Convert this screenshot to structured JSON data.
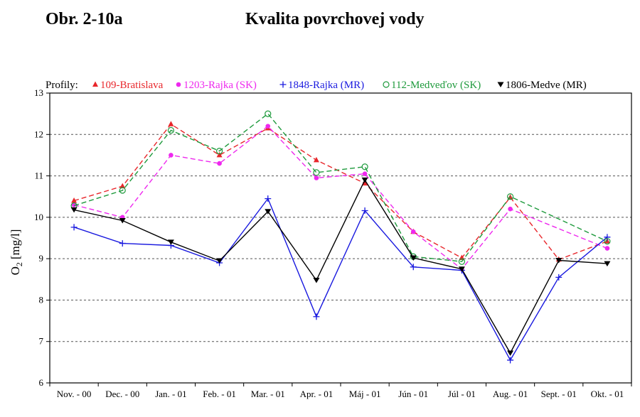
{
  "header": {
    "figure_number": "Obr. 2-10a",
    "figure_title": "Kvalita povrchovej vody"
  },
  "chart_data": {
    "type": "line",
    "legend_title": "Profily:",
    "ylabel_main": "O",
    "ylabel_sub": "2",
    "ylabel_unit": "[mg/l]",
    "ylim": [
      6,
      13
    ],
    "yticks": [
      "6",
      "7",
      "8",
      "9",
      "10",
      "11",
      "12",
      "13"
    ],
    "grid": "horizontal dashed",
    "legend_position": "top",
    "categories": [
      "Nov. - 00",
      "Dec. - 00",
      "Jan. - 01",
      "Feb. - 01",
      "Mar. - 01",
      "Apr. - 01",
      "Máj - 01",
      "Jún - 01",
      "Júl - 01",
      "Aug. - 01",
      "Sept. - 01",
      "Okt. - 01"
    ],
    "series": [
      {
        "name": "109-Bratislava",
        "color": "#e8262b",
        "marker": "triangle-up",
        "dash": true,
        "values": [
          10.4,
          10.75,
          12.25,
          11.5,
          12.15,
          11.38,
          10.82,
          9.65,
          9.02,
          10.48,
          8.98,
          9.42
        ]
      },
      {
        "name": "1203-Rajka (SK)",
        "color": "#ee28ee",
        "marker": "dot",
        "dash": true,
        "values": [
          10.3,
          10.0,
          11.5,
          11.3,
          12.2,
          10.95,
          11.05,
          9.65,
          8.75,
          10.2,
          null,
          9.25
        ]
      },
      {
        "name": "1848-Rajka (MR)",
        "color": "#1a1adf",
        "marker": "plus",
        "dash": false,
        "values": [
          9.76,
          9.37,
          9.32,
          8.9,
          10.45,
          7.6,
          10.16,
          8.8,
          8.72,
          6.55,
          8.55,
          9.52
        ]
      },
      {
        "name": "112-Medveďov (SK)",
        "color": "#1e9a3c",
        "marker": "circle",
        "dash": true,
        "values": [
          10.28,
          10.65,
          12.1,
          11.6,
          12.5,
          11.08,
          11.22,
          9.05,
          8.93,
          10.5,
          null,
          9.42
        ]
      },
      {
        "name": "1806-Medve (MR)",
        "color": "#000000",
        "marker": "triangle-down",
        "dash": false,
        "values": [
          10.18,
          9.92,
          9.4,
          8.95,
          10.14,
          8.48,
          10.9,
          9.02,
          8.75,
          6.72,
          8.96,
          8.88
        ]
      }
    ]
  }
}
